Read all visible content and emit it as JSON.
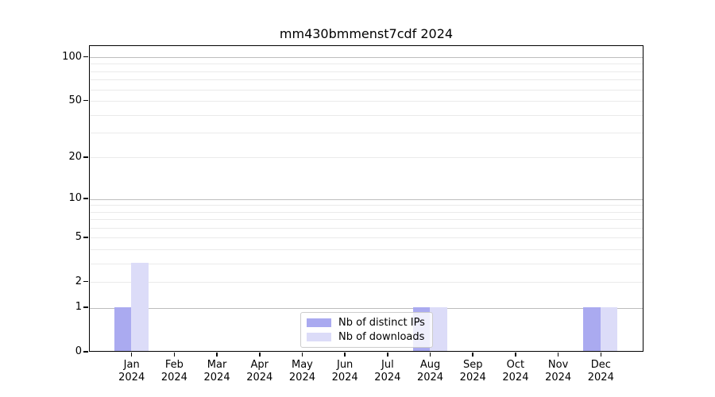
{
  "title": "mm430bmmenst7cdf 2024",
  "colors": {
    "distinct_ips": "#aaaaf0",
    "downloads": "#dcdcf8",
    "grid_major": "#bdbdbd",
    "grid_minor": "#eaeaea",
    "axis": "#000000"
  },
  "legend": {
    "items": [
      {
        "label": "Nb of distinct IPs",
        "color_key": "distinct_ips"
      },
      {
        "label": "Nb of downloads",
        "color_key": "downloads"
      }
    ]
  },
  "chart_data": {
    "type": "bar",
    "title": "mm430bmmenst7cdf 2024",
    "categories": [
      "Jan",
      "Feb",
      "Mar",
      "Apr",
      "May",
      "Jun",
      "Jul",
      "Aug",
      "Sep",
      "Oct",
      "Nov",
      "Dec"
    ],
    "year_label": "2024",
    "series": [
      {
        "name": "Nb of distinct IPs",
        "color": "#aaaaf0",
        "values": [
          1,
          0,
          0,
          0,
          0,
          0,
          0,
          1,
          0,
          0,
          0,
          1
        ]
      },
      {
        "name": "Nb of downloads",
        "color": "#dcdcf8",
        "values": [
          3,
          0,
          0,
          0,
          0,
          0,
          0,
          1,
          0,
          0,
          0,
          1
        ]
      }
    ],
    "xlabel": "",
    "ylabel": "",
    "y_scale": "log1p",
    "ylim": [
      0,
      120
    ],
    "y_ticks": [
      0,
      1,
      2,
      5,
      10,
      20,
      50,
      100
    ],
    "y_major_gridlines": [
      1,
      10,
      100
    ],
    "y_minor_gridlines": [
      2,
      3,
      4,
      5,
      6,
      7,
      8,
      9,
      20,
      30,
      40,
      50,
      60,
      70,
      80,
      90
    ],
    "grid": true,
    "legend_position": "lower center"
  }
}
